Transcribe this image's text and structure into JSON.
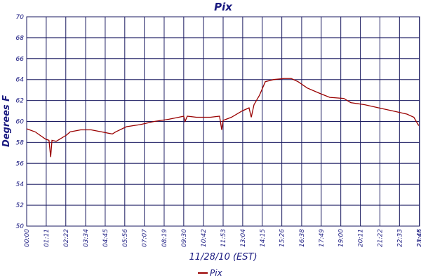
{
  "chart_data": {
    "type": "line",
    "title": "Pix",
    "x_label": "11/28/10 (EST)",
    "y_label": "Degrees F",
    "x": [
      0,
      31,
      69,
      81,
      87,
      92,
      107,
      145,
      158,
      196,
      234,
      272,
      311,
      323,
      362,
      412,
      463,
      514,
      552,
      570,
      575,
      583,
      616,
      667,
      700,
      708,
      713,
      743,
      782,
      807,
      815,
      825,
      845,
      866,
      896,
      934,
      960,
      985,
      1018,
      1062,
      1100,
      1151,
      1176,
      1227,
      1278,
      1329,
      1380,
      1405,
      1423
    ],
    "series": [
      {
        "name": "Pix",
        "color": "#990000",
        "values": [
          59.3,
          59.0,
          58.3,
          58.2,
          56.6,
          58.2,
          58.1,
          58.7,
          59.0,
          59.2,
          59.2,
          59.0,
          58.8,
          59.0,
          59.5,
          59.7,
          60.0,
          60.2,
          60.4,
          60.5,
          60.0,
          60.5,
          60.4,
          60.4,
          60.5,
          59.2,
          60.1,
          60.4,
          61.0,
          61.3,
          60.4,
          61.6,
          62.5,
          63.8,
          64.0,
          64.1,
          64.1,
          63.8,
          63.2,
          62.7,
          62.3,
          62.2,
          61.8,
          61.6,
          61.3,
          61.0,
          60.7,
          60.4,
          59.6
        ]
      }
    ],
    "xlim": [
      0,
      1426
    ],
    "xticks": [
      {
        "value": 0,
        "label": "00:00"
      },
      {
        "value": 71,
        "label": "01:11"
      },
      {
        "value": 142,
        "label": "02:22"
      },
      {
        "value": 214,
        "label": "03:34"
      },
      {
        "value": 285,
        "label": "04:45"
      },
      {
        "value": 356,
        "label": "05:56"
      },
      {
        "value": 427,
        "label": "07:07"
      },
      {
        "value": 499,
        "label": "08:19"
      },
      {
        "value": 570,
        "label": "09:30"
      },
      {
        "value": 642,
        "label": "10:42"
      },
      {
        "value": 713,
        "label": "11:53"
      },
      {
        "value": 784,
        "label": "13:04"
      },
      {
        "value": 855,
        "label": "14:15"
      },
      {
        "value": 926,
        "label": "15:26"
      },
      {
        "value": 998,
        "label": "16:38"
      },
      {
        "value": 1069,
        "label": "17:49"
      },
      {
        "value": 1140,
        "label": "19:00"
      },
      {
        "value": 1211,
        "label": "20:11"
      },
      {
        "value": 1282,
        "label": "21:22"
      },
      {
        "value": 1353,
        "label": "22:33"
      },
      {
        "value": 1425,
        "label": "23:45"
      },
      {
        "value": 1426,
        "label": "23:46"
      }
    ],
    "ylim": [
      50,
      70
    ],
    "yticks": [
      50,
      52,
      54,
      56,
      58,
      60,
      62,
      64,
      66,
      68,
      70
    ],
    "grid": true
  }
}
